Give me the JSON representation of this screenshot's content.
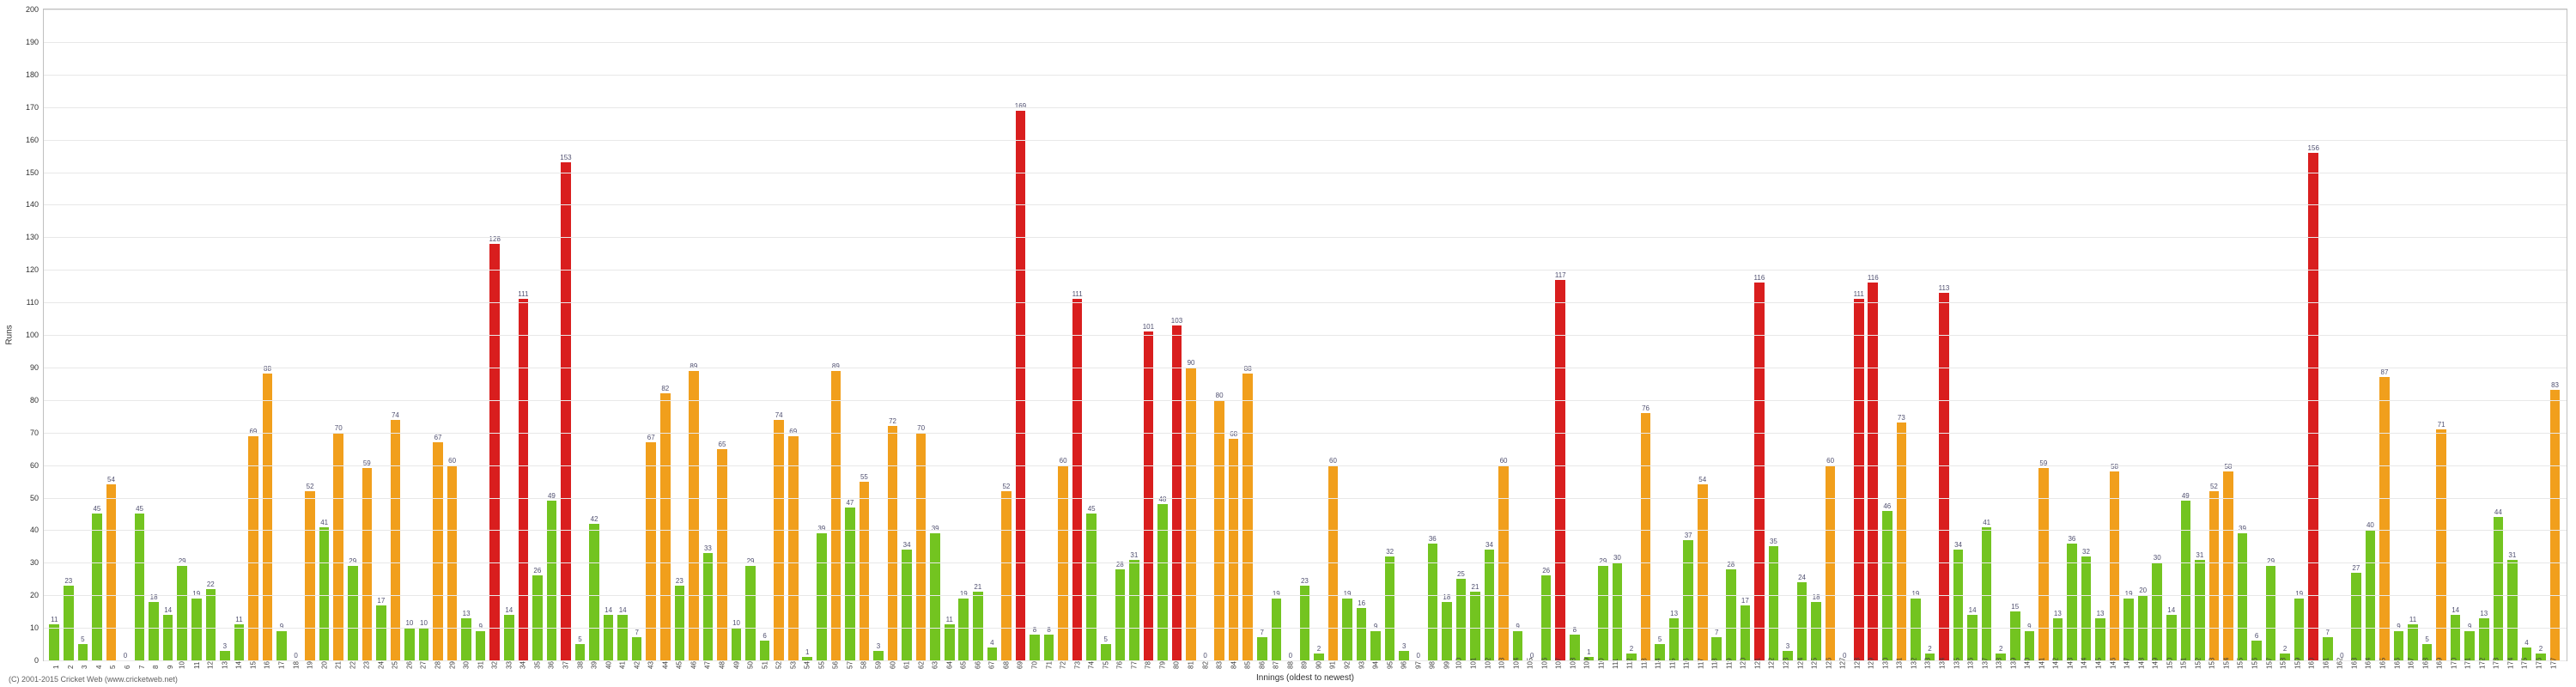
{
  "chart": {
    "type": "bar",
    "background_color": "#ffffff",
    "grid_color": "#e8e8e8",
    "border_color": "#c0c0c0",
    "label_fontsize": 9,
    "bar_width_ratio": 0.7,
    "ylim": [
      0,
      200
    ],
    "ytick_step": 10,
    "ylabel": "Runs",
    "xlabel": "Innings (oldest to newest)",
    "colors": {
      "green": "#73c420",
      "orange": "#f19f1c",
      "red": "#d91e1e"
    },
    "bars": [
      {
        "x": 1,
        "v": 11,
        "c": "green"
      },
      {
        "x": 2,
        "v": 23,
        "c": "green"
      },
      {
        "x": 3,
        "v": 5,
        "c": "green"
      },
      {
        "x": 4,
        "v": 45,
        "c": "green"
      },
      {
        "x": 5,
        "v": 54,
        "c": "orange"
      },
      {
        "x": 6,
        "v": 0,
        "c": "green"
      },
      {
        "x": 7,
        "v": 45,
        "c": "green"
      },
      {
        "x": 8,
        "v": 18,
        "c": "green"
      },
      {
        "x": 9,
        "v": 14,
        "c": "green"
      },
      {
        "x": 10,
        "v": 29,
        "c": "green"
      },
      {
        "x": 11,
        "v": 19,
        "c": "green"
      },
      {
        "x": 12,
        "v": 22,
        "c": "green"
      },
      {
        "x": 13,
        "v": 3,
        "c": "green"
      },
      {
        "x": 14,
        "v": 11,
        "c": "green"
      },
      {
        "x": 15,
        "v": 69,
        "c": "orange"
      },
      {
        "x": 16,
        "v": 88,
        "c": "orange"
      },
      {
        "x": 17,
        "v": 9,
        "c": "green"
      },
      {
        "x": 18,
        "v": 0,
        "c": "green"
      },
      {
        "x": 19,
        "v": 52,
        "c": "orange"
      },
      {
        "x": 20,
        "v": 41,
        "c": "green"
      },
      {
        "x": 21,
        "v": 70,
        "c": "orange"
      },
      {
        "x": 22,
        "v": 29,
        "c": "green"
      },
      {
        "x": 23,
        "v": 59,
        "c": "orange"
      },
      {
        "x": 24,
        "v": 17,
        "c": "green"
      },
      {
        "x": 25,
        "v": 74,
        "c": "orange"
      },
      {
        "x": 26,
        "v": 10,
        "c": "green"
      },
      {
        "x": 27,
        "v": 10,
        "c": "green"
      },
      {
        "x": 28,
        "v": 67,
        "c": "orange"
      },
      {
        "x": 29,
        "v": 60,
        "c": "orange"
      },
      {
        "x": 30,
        "v": 13,
        "c": "green"
      },
      {
        "x": 31,
        "v": 9,
        "c": "green"
      },
      {
        "x": 32,
        "v": 128,
        "c": "red"
      },
      {
        "x": 33,
        "v": 14,
        "c": "green"
      },
      {
        "x": 34,
        "v": 111,
        "c": "red"
      },
      {
        "x": 35,
        "v": 26,
        "c": "green"
      },
      {
        "x": 36,
        "v": 49,
        "c": "green"
      },
      {
        "x": 37,
        "v": 153,
        "c": "red"
      },
      {
        "x": 38,
        "v": 5,
        "c": "green"
      },
      {
        "x": 39,
        "v": 42,
        "c": "green"
      },
      {
        "x": 40,
        "v": 14,
        "c": "green"
      },
      {
        "x": 41,
        "v": 14,
        "c": "green"
      },
      {
        "x": 42,
        "v": 7,
        "c": "green"
      },
      {
        "x": 43,
        "v": 67,
        "c": "orange"
      },
      {
        "x": 44,
        "v": 82,
        "c": "orange"
      },
      {
        "x": 45,
        "v": 23,
        "c": "green"
      },
      {
        "x": 46,
        "v": 89,
        "c": "orange"
      },
      {
        "x": 47,
        "v": 33,
        "c": "green"
      },
      {
        "x": 48,
        "v": 65,
        "c": "orange"
      },
      {
        "x": 49,
        "v": 10,
        "c": "green"
      },
      {
        "x": 50,
        "v": 29,
        "c": "green"
      },
      {
        "x": 51,
        "v": 6,
        "c": "green"
      },
      {
        "x": 52,
        "v": 74,
        "c": "orange"
      },
      {
        "x": 53,
        "v": 69,
        "c": "orange"
      },
      {
        "x": 54,
        "v": 1,
        "c": "green"
      },
      {
        "x": 55,
        "v": 39,
        "c": "green"
      },
      {
        "x": 56,
        "v": 89,
        "c": "orange"
      },
      {
        "x": 57,
        "v": 47,
        "c": "green"
      },
      {
        "x": 58,
        "v": 55,
        "c": "orange"
      },
      {
        "x": 59,
        "v": 3,
        "c": "green"
      },
      {
        "x": 60,
        "v": 72,
        "c": "orange"
      },
      {
        "x": 61,
        "v": 34,
        "c": "green"
      },
      {
        "x": 62,
        "v": 70,
        "c": "orange"
      },
      {
        "x": 63,
        "v": 39,
        "c": "green"
      },
      {
        "x": 64,
        "v": 11,
        "c": "green"
      },
      {
        "x": 65,
        "v": 19,
        "c": "green"
      },
      {
        "x": 66,
        "v": 21,
        "c": "green"
      },
      {
        "x": 67,
        "v": 4,
        "c": "green"
      },
      {
        "x": 68,
        "v": 52,
        "c": "orange"
      },
      {
        "x": 69,
        "v": 169,
        "c": "red"
      },
      {
        "x": 70,
        "v": 8,
        "c": "green"
      },
      {
        "x": 71,
        "v": 8,
        "c": "green"
      },
      {
        "x": 72,
        "v": 60,
        "c": "orange"
      },
      {
        "x": 73,
        "v": 111,
        "c": "red"
      },
      {
        "x": 74,
        "v": 45,
        "c": "green"
      },
      {
        "x": 75,
        "v": 5,
        "c": "green"
      },
      {
        "x": 76,
        "v": 28,
        "c": "green"
      },
      {
        "x": 77,
        "v": 31,
        "c": "green"
      },
      {
        "x": 78,
        "v": 101,
        "c": "red"
      },
      {
        "x": 79,
        "v": 48,
        "c": "green"
      },
      {
        "x": 80,
        "v": 103,
        "c": "red"
      },
      {
        "x": 81,
        "v": 90,
        "c": "orange"
      },
      {
        "x": 82,
        "v": 0,
        "c": "green"
      },
      {
        "x": 83,
        "v": 80,
        "c": "orange"
      },
      {
        "x": 84,
        "v": 68,
        "c": "orange"
      },
      {
        "x": 85,
        "v": 88,
        "c": "orange"
      },
      {
        "x": 86,
        "v": 7,
        "c": "green"
      },
      {
        "x": 87,
        "v": 19,
        "c": "green"
      },
      {
        "x": 88,
        "v": 0,
        "c": "green"
      },
      {
        "x": 89,
        "v": 23,
        "c": "green"
      },
      {
        "x": 90,
        "v": 2,
        "c": "green"
      },
      {
        "x": 91,
        "v": 60,
        "c": "orange"
      },
      {
        "x": 92,
        "v": 19,
        "c": "green"
      },
      {
        "x": 93,
        "v": 16,
        "c": "green"
      },
      {
        "x": 94,
        "v": 9,
        "c": "green"
      },
      {
        "x": 95,
        "v": 32,
        "c": "green"
      },
      {
        "x": 96,
        "v": 3,
        "c": "green"
      },
      {
        "x": 97,
        "v": 0,
        "c": "green"
      },
      {
        "x": 98,
        "v": 36,
        "c": "green"
      },
      {
        "x": 99,
        "v": 18,
        "c": "green"
      },
      {
        "x": 100,
        "v": 25,
        "c": "green"
      },
      {
        "x": 101,
        "v": 21,
        "c": "green"
      },
      {
        "x": 102,
        "v": 34,
        "c": "green"
      },
      {
        "x": 103,
        "v": 60,
        "c": "orange"
      },
      {
        "x": 104,
        "v": 9,
        "c": "green"
      },
      {
        "x": 105,
        "v": 0,
        "c": "green"
      },
      {
        "x": 106,
        "v": 26,
        "c": "green"
      },
      {
        "x": 107,
        "v": 117,
        "c": "red"
      },
      {
        "x": 108,
        "v": 8,
        "c": "green"
      },
      {
        "x": 109,
        "v": 1,
        "c": "green"
      },
      {
        "x": 110,
        "v": 29,
        "c": "green"
      },
      {
        "x": 111,
        "v": 30,
        "c": "green"
      },
      {
        "x": 112,
        "v": 2,
        "c": "green"
      },
      {
        "x": 113,
        "v": 76,
        "c": "orange"
      },
      {
        "x": 114,
        "v": 5,
        "c": "green"
      },
      {
        "x": 115,
        "v": 13,
        "c": "green"
      },
      {
        "x": 116,
        "v": 37,
        "c": "green"
      },
      {
        "x": 117,
        "v": 54,
        "c": "orange"
      },
      {
        "x": 118,
        "v": 7,
        "c": "green"
      },
      {
        "x": 119,
        "v": 28,
        "c": "green"
      },
      {
        "x": 120,
        "v": 17,
        "c": "green"
      },
      {
        "x": 121,
        "v": 116,
        "c": "red"
      },
      {
        "x": 122,
        "v": 35,
        "c": "green"
      },
      {
        "x": 123,
        "v": 3,
        "c": "green"
      },
      {
        "x": 124,
        "v": 24,
        "c": "green"
      },
      {
        "x": 125,
        "v": 18,
        "c": "green"
      },
      {
        "x": 126,
        "v": 60,
        "c": "orange"
      },
      {
        "x": 127,
        "v": 0,
        "c": "green"
      },
      {
        "x": 128,
        "v": 111,
        "c": "red"
      },
      {
        "x": 129,
        "v": 116,
        "c": "red"
      },
      {
        "x": 130,
        "v": 46,
        "c": "green"
      },
      {
        "x": 131,
        "v": 73,
        "c": "orange"
      },
      {
        "x": 132,
        "v": 19,
        "c": "green"
      },
      {
        "x": 133,
        "v": 2,
        "c": "green"
      },
      {
        "x": 134,
        "v": 113,
        "c": "red"
      },
      {
        "x": 135,
        "v": 34,
        "c": "green"
      },
      {
        "x": 136,
        "v": 14,
        "c": "green"
      },
      {
        "x": 137,
        "v": 41,
        "c": "green"
      },
      {
        "x": 138,
        "v": 2,
        "c": "green"
      },
      {
        "x": 139,
        "v": 15,
        "c": "green"
      },
      {
        "x": 140,
        "v": 9,
        "c": "green"
      },
      {
        "x": 141,
        "v": 59,
        "c": "orange"
      },
      {
        "x": 142,
        "v": 13,
        "c": "green"
      },
      {
        "x": 143,
        "v": 36,
        "c": "green"
      },
      {
        "x": 144,
        "v": 32,
        "c": "green"
      },
      {
        "x": 145,
        "v": 13,
        "c": "green"
      },
      {
        "x": 146,
        "v": 58,
        "c": "orange"
      },
      {
        "x": 147,
        "v": 19,
        "c": "green"
      },
      {
        "x": 148,
        "v": 20,
        "c": "green"
      },
      {
        "x": 149,
        "v": 30,
        "c": "green"
      },
      {
        "x": 150,
        "v": 14,
        "c": "green"
      },
      {
        "x": 151,
        "v": 49,
        "c": "green"
      },
      {
        "x": 152,
        "v": 31,
        "c": "green"
      },
      {
        "x": 153,
        "v": 52,
        "c": "orange"
      },
      {
        "x": 154,
        "v": 58,
        "c": "orange"
      },
      {
        "x": 155,
        "v": 39,
        "c": "green"
      },
      {
        "x": 156,
        "v": 6,
        "c": "green"
      },
      {
        "x": 157,
        "v": 29,
        "c": "green"
      },
      {
        "x": 158,
        "v": 2,
        "c": "green"
      },
      {
        "x": 159,
        "v": 19,
        "c": "green"
      },
      {
        "x": 160,
        "v": 156,
        "c": "red"
      },
      {
        "x": 161,
        "v": 7,
        "c": "green"
      },
      {
        "x": 162,
        "v": 0,
        "c": "green"
      },
      {
        "x": 163,
        "v": 27,
        "c": "green"
      },
      {
        "x": 164,
        "v": 40,
        "c": "green"
      },
      {
        "x": 165,
        "v": 87,
        "c": "orange"
      },
      {
        "x": 166,
        "v": 9,
        "c": "green"
      },
      {
        "x": 167,
        "v": 11,
        "c": "green"
      },
      {
        "x": 168,
        "v": 5,
        "c": "green"
      },
      {
        "x": 169,
        "v": 71,
        "c": "orange"
      },
      {
        "x": 170,
        "v": 14,
        "c": "green"
      },
      {
        "x": 171,
        "v": 9,
        "c": "green"
      },
      {
        "x": 172,
        "v": 13,
        "c": "green"
      },
      {
        "x": 173,
        "v": 44,
        "c": "green"
      },
      {
        "x": 174,
        "v": 31,
        "c": "green"
      },
      {
        "x": 175,
        "v": 4,
        "c": "green"
      },
      {
        "x": 176,
        "v": 2,
        "c": "green"
      },
      {
        "x": 177,
        "v": 83,
        "c": "orange"
      }
    ]
  },
  "credit": "(C) 2001-2015 Cricket Web (www.cricketweb.net)"
}
